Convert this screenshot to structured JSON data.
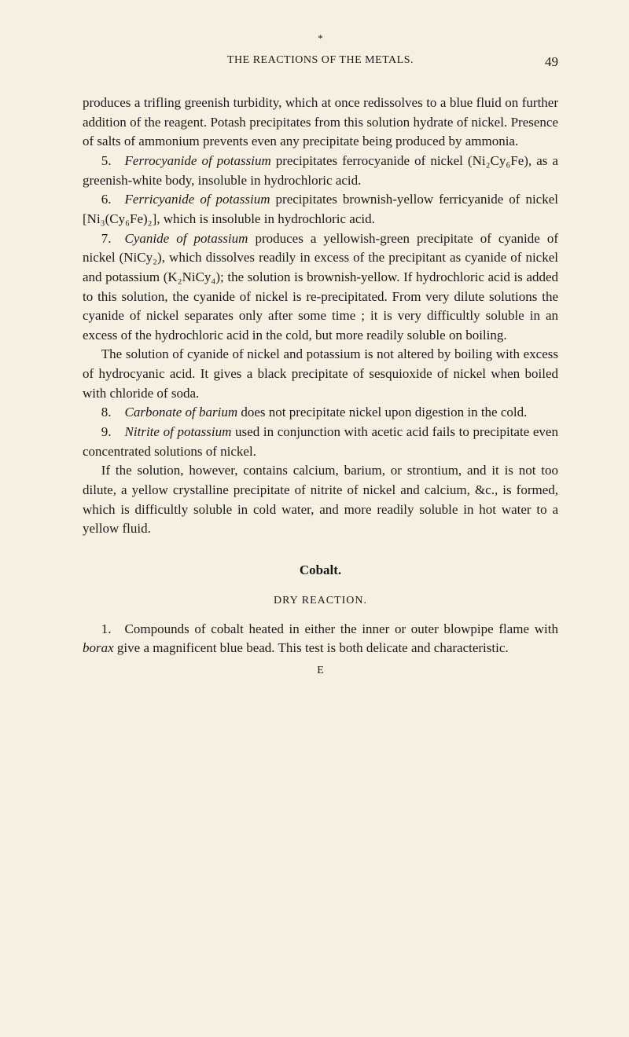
{
  "marker": "*",
  "header": {
    "title": "THE REACTIONS OF THE METALS.",
    "page": "49"
  },
  "paragraphs": {
    "p1": "produces a trifling greenish turbidity, which at once redissolves to a blue fluid on further addition of the reagent. Potash precipitates from this solution hydrate of nickel. Presence of salts of ammonium prevents even any precipitate being produced by ammonia.",
    "p2a": "5. ",
    "p2i": "Ferrocyanide of potassium",
    "p2b": " precipitates ferrocyanide of nickel (Ni₂Cy₆Fe), as a greenish-white body, insoluble in hydrochloric acid.",
    "p3a": "6. ",
    "p3i": "Ferricyanide of potassium",
    "p3b": " precipitates brownish-yellow ferricyanide of nickel [Ni₃(Cy₆Fe)₂], which is insoluble in hydrochloric acid.",
    "p4a": "7. ",
    "p4i": "Cyanide of potassium",
    "p4b": " produces a yellowish-green precipitate of cyanide of nickel (NiCy₂), which dissolves readily in excess of the precipitant as cyanide of nickel and potassium (K₂NiCy₄); the solution is brownish-yellow. If hydrochloric acid is added to this solution, the cyanide of nickel is re-precipitated. From very dilute solutions the cyanide of nickel separates only after some time ; it is very difficultly soluble in an excess of the hydrochloric acid in the cold, but more readily soluble on boiling.",
    "p5": "The solution of cyanide of nickel and potassium is not altered by boiling with excess of hydrocyanic acid. It gives a black precipitate of sesquioxide of nickel when boiled with chloride of soda.",
    "p6a": "8. ",
    "p6i": "Carbonate of barium",
    "p6b": " does not precipitate nickel upon digestion in the cold.",
    "p7a": "9. ",
    "p7i": "Nitrite of potassium",
    "p7b": " used in conjunction with acetic acid fails to precipitate even concentrated solutions of nickel.",
    "p8": "If the solution, however, contains calcium, barium, or strontium, and it is not too dilute, a yellow crystalline precipitate of nitrite of nickel and calcium, &c., is formed, which is difficultly soluble in cold water, and more readily soluble in hot water to a yellow fluid.",
    "cobalt": "Cobalt.",
    "dry": "DRY REACTION.",
    "p9a": "1. Compounds of cobalt heated in either the inner or outer blowpipe flame with ",
    "p9i": "borax",
    "p9b": " give a magnificent blue bead. This test is both delicate and characteristic.",
    "sig": "E"
  }
}
